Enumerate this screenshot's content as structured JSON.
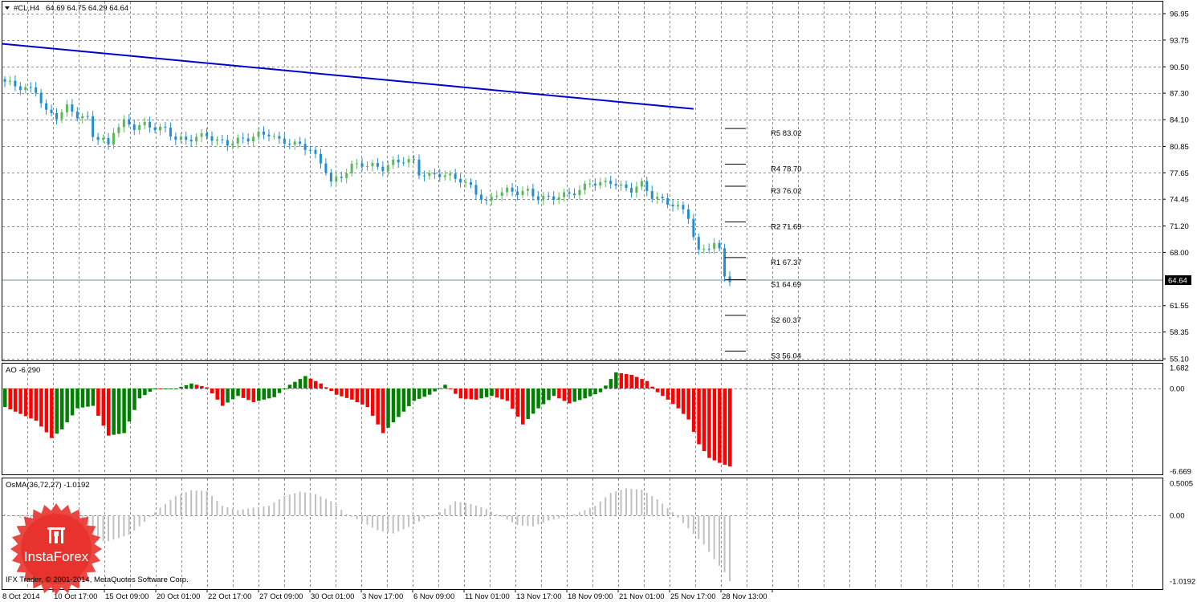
{
  "header": {
    "symbol_label": "#CL,H4",
    "ohlc_label": "64.69 64.75 64.29 64.64"
  },
  "price_panel": {
    "price_ticks": [
      "96.95",
      "93.75",
      "90.50",
      "87.30",
      "84.10",
      "80.85",
      "77.65",
      "74.45",
      "71.20",
      "68.00",
      "64.64",
      "61.55",
      "58.35",
      "55.10"
    ],
    "current_price": "64.64",
    "pivot_levels": [
      {
        "label": "R5 83.02",
        "value": 83.02
      },
      {
        "label": "R4 78.70",
        "value": 78.7
      },
      {
        "label": "R3 76.02",
        "value": 76.02
      },
      {
        "label": "R2 71.69",
        "value": 71.69
      },
      {
        "label": "R1 67.37",
        "value": 67.37
      },
      {
        "label": "S1 64.69",
        "value": 64.69
      },
      {
        "label": "S2 60.37",
        "value": 60.37
      },
      {
        "label": "S3 56.04",
        "value": 56.04
      }
    ]
  },
  "ao_panel": {
    "title": "AO -6.290",
    "ticks": [
      "1.682",
      "0.00",
      "-6.669"
    ]
  },
  "osma_panel": {
    "title": "OsMA(36,72,27) -1.0192",
    "ticks": [
      "0.5005",
      "0.00",
      "-1.0192"
    ]
  },
  "time_axis": [
    "8 Oct 2014",
    "10 Oct 17:00",
    "15 Oct 09:00",
    "20 Oct 01:00",
    "22 Oct 17:00",
    "27 Oct 09:00",
    "30 Oct 01:00",
    "3 Nov 17:00",
    "6 Nov 09:00",
    "11 Nov 01:00",
    "13 Nov 17:00",
    "18 Nov 09:00",
    "21 Nov 01:00",
    "25 Nov 17:00",
    "28 Nov 13:00"
  ],
  "footer": {
    "copyright": "IFX Trader, © 2001-2014, MetaQuotes Software Corp."
  },
  "brand": {
    "name": "InstaForex",
    "color": "#e8322e"
  },
  "colors": {
    "bull_candle": "#5cb85c",
    "bear_candle": "#1e90d0",
    "trendline": "#0000cc",
    "ao_up": "#008000",
    "ao_down": "#ff0000",
    "osma": "#c0c0c0"
  },
  "chart_data": [
    {
      "type": "candlestick",
      "title": "#CL,H4",
      "ylim": [
        55.1,
        96.95
      ],
      "close_path": [
        [
          0,
          88.7
        ],
        [
          3,
          88.0
        ],
        [
          6,
          87.6
        ],
        [
          8,
          85.0
        ],
        [
          10,
          84.5
        ],
        [
          12,
          85.6
        ],
        [
          14,
          84.6
        ],
        [
          16,
          84.2
        ],
        [
          17,
          82.2
        ],
        [
          19,
          81.6
        ],
        [
          20,
          80.9
        ],
        [
          21,
          82.8
        ],
        [
          23,
          83.8
        ],
        [
          25,
          83.2
        ],
        [
          27,
          83.5
        ],
        [
          29,
          83.1
        ],
        [
          31,
          82.9
        ],
        [
          33,
          81.8
        ],
        [
          35,
          81.6
        ],
        [
          37,
          82.0
        ],
        [
          39,
          82.2
        ],
        [
          41,
          81.5
        ],
        [
          43,
          81.2
        ],
        [
          45,
          81.6
        ],
        [
          47,
          81.8
        ],
        [
          49,
          82.3
        ],
        [
          51,
          82.4
        ],
        [
          53,
          81.5
        ],
        [
          55,
          81.3
        ],
        [
          57,
          81.0
        ],
        [
          59,
          80.5
        ],
        [
          60,
          79.6
        ],
        [
          62,
          78.0
        ],
        [
          63,
          76.5
        ],
        [
          65,
          77.2
        ],
        [
          67,
          78.5
        ],
        [
          69,
          78.7
        ],
        [
          71,
          78.5
        ],
        [
          73,
          78.2
        ],
        [
          75,
          78.9
        ],
        [
          77,
          79.2
        ],
        [
          79,
          79.0
        ],
        [
          80,
          77.6
        ],
        [
          82,
          77.3
        ],
        [
          84,
          77.5
        ],
        [
          86,
          77.2
        ],
        [
          88,
          76.8
        ],
        [
          90,
          75.9
        ],
        [
          92,
          74.6
        ],
        [
          93,
          74.0
        ],
        [
          95,
          75.2
        ],
        [
          97,
          75.5
        ],
        [
          99,
          75.3
        ],
        [
          101,
          75.4
        ],
        [
          103,
          74.6
        ],
        [
          105,
          74.6
        ],
        [
          107,
          74.8
        ],
        [
          109,
          75.1
        ],
        [
          111,
          75.5
        ],
        [
          113,
          76.5
        ],
        [
          115,
          76.3
        ],
        [
          117,
          76.6
        ],
        [
          119,
          75.9
        ],
        [
          121,
          75.6
        ],
        [
          123,
          76.3
        ],
        [
          125,
          74.8
        ],
        [
          127,
          74.3
        ],
        [
          129,
          73.8
        ],
        [
          131,
          73.1
        ],
        [
          132,
          72.4
        ],
        [
          133,
          69.9
        ],
        [
          134,
          68.0
        ],
        [
          135,
          68.5
        ],
        [
          137,
          69.0
        ],
        [
          138,
          68.2
        ],
        [
          139,
          65.3
        ],
        [
          140,
          64.64
        ]
      ],
      "trendline": {
        "start": [
          0,
          93.3
        ],
        "end": [
          133,
          85.4
        ]
      },
      "pivot_levels": [
        83.02,
        78.7,
        76.02,
        71.69,
        67.37,
        64.69,
        60.37,
        56.04
      ]
    },
    {
      "type": "histogram",
      "title": "AO -6.290",
      "ylim": [
        -6.669,
        1.682
      ],
      "keyframes": [
        [
          0,
          -1.5
        ],
        [
          6,
          -2.6
        ],
        [
          9,
          -4.0
        ],
        [
          11,
          -3.3
        ],
        [
          14,
          -1.6
        ],
        [
          17,
          -1.4
        ],
        [
          20,
          -3.8
        ],
        [
          23,
          -3.6
        ],
        [
          26,
          -0.8
        ],
        [
          29,
          0
        ],
        [
          33,
          0
        ],
        [
          36,
          0.4
        ],
        [
          39,
          0.1
        ],
        [
          42,
          -1.4
        ],
        [
          45,
          -0.6
        ],
        [
          48,
          -1.1
        ],
        [
          52,
          -0.7
        ],
        [
          55,
          0.3
        ],
        [
          58,
          1.0
        ],
        [
          61,
          0.4
        ],
        [
          64,
          -0.5
        ],
        [
          67,
          -0.9
        ],
        [
          70,
          -1.5
        ],
        [
          73,
          -3.6
        ],
        [
          76,
          -2.3
        ],
        [
          79,
          -1.0
        ],
        [
          82,
          -0.5
        ],
        [
          85,
          0.3
        ],
        [
          88,
          -0.8
        ],
        [
          91,
          -0.9
        ],
        [
          94,
          -0.6
        ],
        [
          97,
          -1.0
        ],
        [
          100,
          -2.9
        ],
        [
          103,
          -1.6
        ],
        [
          106,
          -0.6
        ],
        [
          109,
          -1.2
        ],
        [
          112,
          -0.8
        ],
        [
          115,
          -0.3
        ],
        [
          118,
          1.3
        ],
        [
          121,
          1.1
        ],
        [
          124,
          0.6
        ],
        [
          126,
          -0.3
        ],
        [
          128,
          -0.9
        ],
        [
          130,
          -1.6
        ],
        [
          132,
          -2.5
        ],
        [
          134,
          -4.5
        ],
        [
          136,
          -5.6
        ],
        [
          138,
          -6.0
        ],
        [
          140,
          -6.29
        ]
      ]
    },
    {
      "type": "histogram",
      "title": "OsMA(36,72,27) -1.0192",
      "ylim": [
        -1.0192,
        0.5005
      ],
      "keyframes": [
        [
          0,
          0.02
        ],
        [
          4,
          -0.05
        ],
        [
          8,
          -0.2
        ],
        [
          12,
          -0.33
        ],
        [
          16,
          -0.38
        ],
        [
          20,
          -0.4
        ],
        [
          24,
          -0.3
        ],
        [
          27,
          -0.1
        ],
        [
          30,
          0.12
        ],
        [
          33,
          0.3
        ],
        [
          36,
          0.39
        ],
        [
          39,
          0.38
        ],
        [
          42,
          0.15
        ],
        [
          45,
          0.08
        ],
        [
          48,
          0.12
        ],
        [
          51,
          0.15
        ],
        [
          54,
          0.3
        ],
        [
          57,
          0.37
        ],
        [
          60,
          0.33
        ],
        [
          63,
          0.22
        ],
        [
          66,
          0.02
        ],
        [
          69,
          -0.1
        ],
        [
          72,
          -0.23
        ],
        [
          75,
          -0.28
        ],
        [
          78,
          -0.18
        ],
        [
          81,
          -0.05
        ],
        [
          84,
          0.05
        ],
        [
          87,
          0.22
        ],
        [
          90,
          0.18
        ],
        [
          93,
          0.1
        ],
        [
          96,
          -0.02
        ],
        [
          99,
          -0.15
        ],
        [
          102,
          -0.17
        ],
        [
          105,
          -0.08
        ],
        [
          108,
          -0.03
        ],
        [
          111,
          0.05
        ],
        [
          114,
          0.15
        ],
        [
          117,
          0.35
        ],
        [
          120,
          0.42
        ],
        [
          123,
          0.4
        ],
        [
          126,
          0.25
        ],
        [
          129,
          0.05
        ],
        [
          132,
          -0.2
        ],
        [
          135,
          -0.45
        ],
        [
          137,
          -0.68
        ],
        [
          139,
          -0.88
        ],
        [
          140,
          -1.0192
        ]
      ]
    }
  ]
}
